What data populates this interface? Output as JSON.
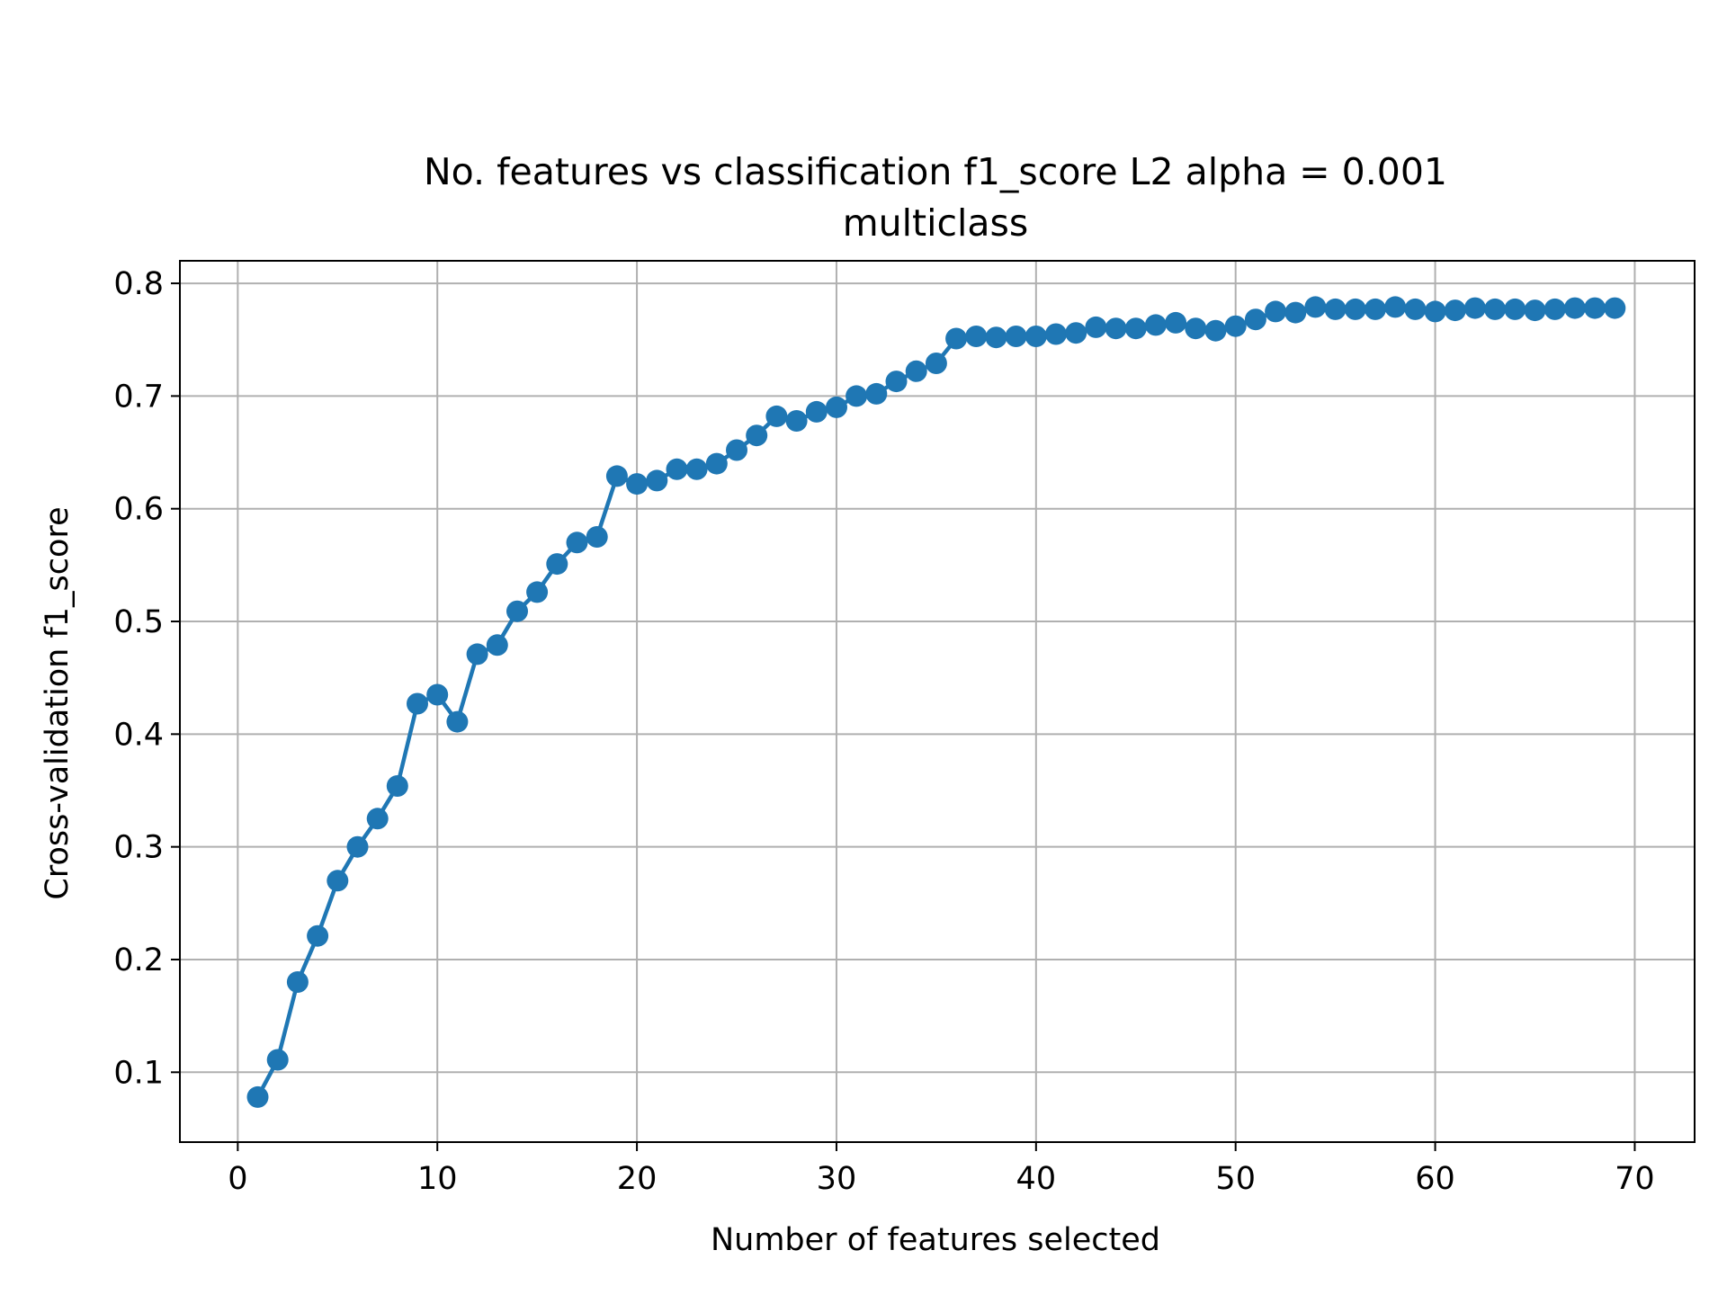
{
  "chart_data": {
    "type": "line",
    "title": "No. features vs classification f1_score L2 alpha = 0.001",
    "subtitle": "multiclass",
    "xlabel": "Number of features selected",
    "ylabel": "Cross-validation f1_score",
    "xlim": [
      -2.9,
      73
    ],
    "ylim": [
      0.038,
      0.82
    ],
    "xticks": [
      0,
      10,
      20,
      30,
      40,
      50,
      60,
      70
    ],
    "yticks": [
      0.1,
      0.2,
      0.3,
      0.4,
      0.5,
      0.6,
      0.7,
      0.8
    ],
    "grid": true,
    "legend": "none",
    "series": [
      {
        "color": "#1f77b4",
        "marker": "circle",
        "x": [
          1,
          2,
          3,
          4,
          5,
          6,
          7,
          8,
          9,
          10,
          11,
          12,
          13,
          14,
          15,
          16,
          17,
          18,
          19,
          20,
          21,
          22,
          23,
          24,
          25,
          26,
          27,
          28,
          29,
          30,
          31,
          32,
          33,
          34,
          35,
          36,
          37,
          38,
          39,
          40,
          41,
          42,
          43,
          44,
          45,
          46,
          47,
          48,
          49,
          50,
          51,
          52,
          53,
          54,
          55,
          56,
          57,
          58,
          59,
          60,
          61,
          62,
          63,
          64,
          65,
          66,
          67,
          68,
          69
        ],
        "values": [
          0.078,
          0.111,
          0.18,
          0.221,
          0.27,
          0.3,
          0.325,
          0.354,
          0.427,
          0.435,
          0.411,
          0.471,
          0.479,
          0.509,
          0.526,
          0.551,
          0.57,
          0.575,
          0.629,
          0.622,
          0.625,
          0.635,
          0.635,
          0.64,
          0.652,
          0.665,
          0.682,
          0.678,
          0.686,
          0.69,
          0.7,
          0.702,
          0.713,
          0.722,
          0.729,
          0.751,
          0.753,
          0.752,
          0.753,
          0.753,
          0.755,
          0.756,
          0.761,
          0.76,
          0.76,
          0.763,
          0.765,
          0.76,
          0.758,
          0.762,
          0.768,
          0.775,
          0.774,
          0.779,
          0.777,
          0.777,
          0.777,
          0.779,
          0.777,
          0.775,
          0.776,
          0.778,
          0.777,
          0.777,
          0.776,
          0.777,
          0.778,
          0.778,
          0.778
        ]
      }
    ]
  }
}
